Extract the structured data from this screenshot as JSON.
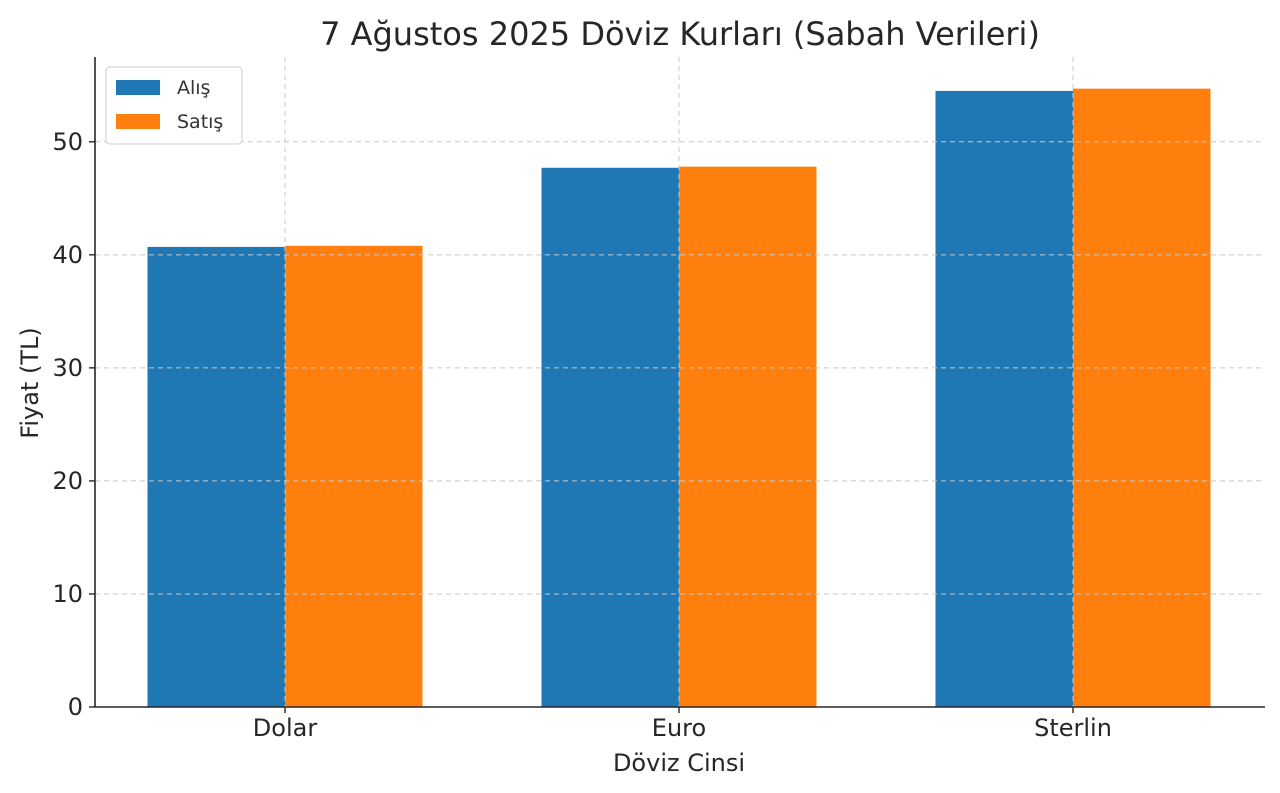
{
  "chart_data": {
    "type": "bar",
    "title": "7 Ağustos 2025 Döviz Kurları (Sabah Verileri)",
    "xlabel": "Döviz Cinsi",
    "ylabel": "Fiyat (TL)",
    "categories": [
      "Dolar",
      "Euro",
      "Sterlin"
    ],
    "series": [
      {
        "name": "Alış",
        "values": [
          40.7,
          47.7,
          54.5
        ],
        "color": "#1f77b4"
      },
      {
        "name": "Satış",
        "values": [
          40.8,
          47.8,
          54.7
        ],
        "color": "#ff7f0e"
      }
    ],
    "ylim": [
      0,
      57.5
    ],
    "yticks": [
      0,
      10,
      20,
      30,
      40,
      50
    ],
    "grid": true,
    "legend": "top-left"
  }
}
